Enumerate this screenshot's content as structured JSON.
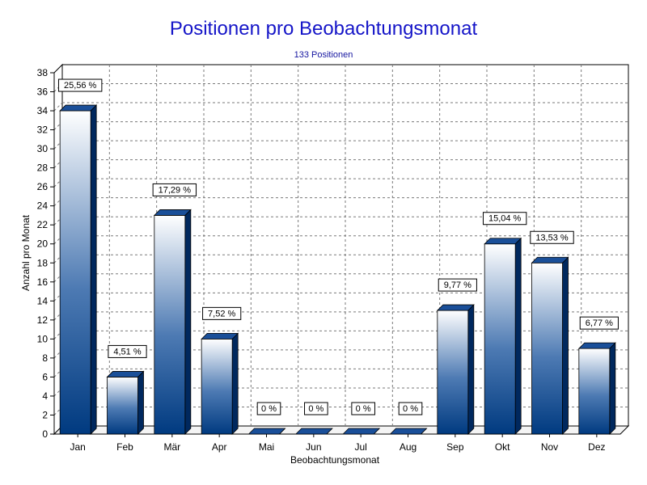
{
  "chart_data": {
    "type": "bar",
    "title": "Positionen pro Beobachtungsmonat",
    "subtitle": "133 Positionen",
    "xlabel": "Beobachtungsmonat",
    "ylabel": "Anzahl pro Monat",
    "ylim": [
      0,
      38
    ],
    "ytick_step": 2,
    "grid": true,
    "legend": "none",
    "categories": [
      "Jan",
      "Feb",
      "Mär",
      "Apr",
      "Mai",
      "Jun",
      "Jul",
      "Aug",
      "Sep",
      "Okt",
      "Nov",
      "Dez"
    ],
    "values": [
      34,
      6,
      23,
      10,
      0,
      0,
      0,
      0,
      13,
      20,
      18,
      9
    ],
    "data_labels": [
      "25,56 %",
      "4,51 %",
      "17,29 %",
      "7,52 %",
      "0 %",
      "0 %",
      "0 %",
      "0 %",
      "9,77 %",
      "15,04 %",
      "13,53 %",
      "6,77 %"
    ],
    "colors": {
      "bar_top": "#ffffff",
      "bar_bottom": "#003a80",
      "bar_cap": "#1a4f99",
      "bar_side": "#00285e",
      "title": "#1515c8",
      "grid": "#7a7a7a"
    }
  }
}
